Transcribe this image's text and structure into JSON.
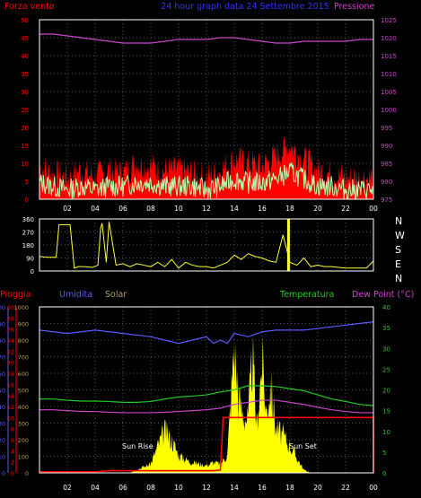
{
  "header": {
    "left_title": "Forza vento",
    "center_title": "24 hour graph data   24 Settembre 2015",
    "right_title": "Pressione"
  },
  "panel2": {
    "compass": [
      "N",
      "W",
      "S",
      "E",
      "N"
    ]
  },
  "panel3": {
    "labels": {
      "pioggia": "Pioggia",
      "umidita": "Umidita",
      "solar": "Solar",
      "temperatura": "Temperatura",
      "dewpoint": "Dew Point (°C)"
    },
    "annotations": {
      "sunrise": "Sun Rise",
      "sunset": "Sun Set"
    }
  },
  "x_ticks": [
    "02",
    "04",
    "06",
    "08",
    "10",
    "12",
    "14",
    "16",
    "18",
    "20",
    "22",
    "00"
  ],
  "colors": {
    "wind_gust": "#ff0000",
    "wind_avg": "#b0ffb0",
    "pressure": "#cc44cc",
    "wind_dir": "#ffff33",
    "rain": "#ff0000",
    "humidity": "#5a5aff",
    "solar": "#ffff00",
    "temperature": "#22cc22",
    "dewpoint": "#cc44cc",
    "axis_red": "#ff0000",
    "axis_blue": "#5a5aff",
    "axis_green": "#22cc22",
    "axis_pressure": "#cc44cc",
    "solar_label": "#b0a060"
  },
  "chart_data": [
    {
      "type": "area",
      "title": "24 hour graph data   24 Settembre 2015",
      "x_hours": [
        0,
        24
      ],
      "axes": {
        "left": {
          "label": "Forza vento",
          "ticks": [
            0,
            5,
            10,
            15,
            20,
            25,
            30,
            35,
            40,
            45,
            50
          ],
          "ylim": [
            0,
            50
          ]
        },
        "right": {
          "label": "Pressione",
          "ticks": [
            975,
            980,
            985,
            990,
            995,
            1000,
            1005,
            1010,
            1015,
            1020,
            1025
          ],
          "ylim": [
            975,
            1025
          ]
        }
      },
      "series": [
        {
          "name": "Pressione",
          "x": [
            0,
            1,
            2,
            3,
            4,
            5,
            6,
            7,
            8,
            9,
            10,
            11,
            12,
            13,
            14,
            15,
            16,
            17,
            18,
            19,
            20,
            21,
            22,
            23,
            24
          ],
          "values": [
            1021,
            1021,
            1020.5,
            1020,
            1019.5,
            1019,
            1018.5,
            1018.5,
            1018.5,
            1019,
            1019.5,
            1019.5,
            1019.5,
            1020,
            1020,
            1019.5,
            1019,
            1018.5,
            1018.5,
            1019,
            1019,
            1019,
            1019,
            1019.5,
            1019.5
          ]
        },
        {
          "x": [
            0,
            1,
            2,
            3,
            4,
            5,
            6,
            7,
            8,
            9,
            10,
            11,
            12,
            13,
            14,
            15,
            16,
            17,
            18,
            19,
            20,
            21,
            22,
            23,
            24
          ],
          "values": [
            8,
            6,
            5,
            7,
            5,
            7,
            6,
            9,
            8,
            7,
            7,
            6,
            5,
            7,
            10,
            9,
            8,
            11,
            14,
            10,
            7,
            6,
            5,
            5,
            5
          ]
        },
        {
          "x": [
            0,
            1,
            2,
            3,
            4,
            5,
            6,
            7,
            8,
            9,
            10,
            11,
            12,
            13,
            14,
            15,
            16,
            17,
            18,
            19,
            20,
            21,
            22,
            23,
            24
          ],
          "values": [
            4,
            3,
            2,
            3,
            2,
            3,
            3,
            4,
            4,
            3,
            3,
            3,
            2,
            3,
            5,
            4,
            4,
            5,
            7,
            5,
            3,
            3,
            2,
            2,
            2
          ]
        }
      ]
    },
    {
      "type": "line",
      "axes": {
        "left": {
          "ticks": [
            0,
            90,
            180,
            270,
            360
          ],
          "ylim": [
            0,
            360
          ]
        },
        "right": {
          "ticks": [
            "N",
            "W",
            "S",
            "E",
            "N"
          ]
        }
      },
      "series": [
        {
          "x": [
            0,
            0.6,
            1.2,
            1.4,
            2.2,
            2.5,
            2.8,
            3.2,
            3.8,
            4.2,
            4.4,
            4.5,
            4.8,
            5,
            5.5,
            6,
            6.5,
            7,
            7.5,
            8,
            8.5,
            9,
            9.5,
            10,
            10.5,
            11,
            11.5,
            12,
            12.5,
            13,
            13.5,
            14,
            14.5,
            15,
            15.5,
            16,
            16.5,
            17,
            17.5,
            18,
            18.5,
            19,
            19.5,
            20,
            20.5,
            21,
            21.5,
            22,
            22.5,
            23,
            23.5,
            24
          ],
          "values": [
            100,
            95,
            95,
            320,
            320,
            20,
            30,
            30,
            25,
            40,
            300,
            330,
            60,
            340,
            40,
            50,
            30,
            50,
            40,
            30,
            60,
            30,
            80,
            20,
            60,
            40,
            30,
            30,
            20,
            40,
            60,
            110,
            80,
            120,
            100,
            90,
            70,
            60,
            250,
            60,
            40,
            90,
            30,
            40,
            30,
            30,
            25,
            20,
            20,
            20,
            20,
            70
          ]
        }
      ]
    },
    {
      "type": "line",
      "axes": {
        "pioggia": {
          "label": "Pioggia",
          "ticks": [
            0,
            2,
            4,
            6,
            8,
            10,
            12,
            14,
            16,
            18,
            20,
            22,
            24,
            26,
            28,
            30
          ],
          "ylim": [
            0,
            30
          ]
        },
        "umidita": {
          "label": "Umidita",
          "ticks": [
            0,
            10,
            20,
            30,
            40,
            50,
            60,
            70,
            80,
            90,
            100
          ],
          "ylim": [
            0,
            100
          ]
        },
        "solar": {
          "label": "Solar",
          "ticks": [
            0,
            100,
            200,
            300,
            400,
            500,
            600,
            700,
            800,
            900,
            1000
          ],
          "ylim": [
            0,
            1000
          ]
        },
        "temperatura": {
          "label": "Temperatura",
          "ticks": [
            0,
            5,
            10,
            15,
            20,
            25,
            30,
            35,
            40
          ],
          "ylim": [
            0,
            40
          ]
        }
      },
      "annotations": [
        "Sun Rise",
        "Sun Set"
      ],
      "series": [
        {
          "name": "Umidita",
          "x": [
            0,
            1,
            2,
            3,
            4,
            5,
            6,
            7,
            8,
            9,
            10,
            11,
            12,
            12.5,
            13,
            13.5,
            14,
            15,
            16,
            17,
            18,
            19,
            20,
            21,
            22,
            23,
            24
          ],
          "values": [
            86,
            85,
            84,
            85,
            86,
            85,
            84,
            83,
            82,
            80,
            78,
            80,
            82,
            78,
            80,
            78,
            84,
            82,
            85,
            86,
            86,
            86,
            87,
            88,
            89,
            90,
            91
          ]
        },
        {
          "name": "Temperatura",
          "x": [
            0,
            1,
            2,
            3,
            4,
            5,
            6,
            7,
            8,
            9,
            10,
            11,
            12,
            13,
            14,
            15,
            16,
            17,
            18,
            19,
            20,
            21,
            22,
            23,
            24
          ],
          "values": [
            17.8,
            17.8,
            17.5,
            17.3,
            17.3,
            17.2,
            17.0,
            17.0,
            17.2,
            17.8,
            18.3,
            18.5,
            18.8,
            19.5,
            20.0,
            21.0,
            21.0,
            20.8,
            20.3,
            19.8,
            18.8,
            17.8,
            17.2,
            16.5,
            16.2
          ]
        },
        {
          "name": "Dew Point (°C)",
          "x": [
            0,
            1,
            2,
            3,
            4,
            5,
            6,
            7,
            8,
            9,
            10,
            11,
            12,
            13,
            14,
            15,
            16,
            17,
            18,
            19,
            20,
            21,
            22,
            23,
            24
          ],
          "values": [
            15.2,
            15.2,
            15.0,
            14.8,
            14.8,
            14.6,
            14.5,
            14.5,
            14.5,
            14.6,
            14.8,
            15.0,
            15.2,
            15.6,
            16.5,
            17.0,
            17.5,
            17.5,
            17.0,
            16.5,
            15.8,
            15.2,
            14.8,
            14.5,
            14.5
          ]
        },
        {
          "name": "Solar",
          "x": [
            0,
            5,
            6.5,
            8,
            8.5,
            9,
            9.5,
            10,
            10.5,
            11,
            11.5,
            12,
            12.5,
            13,
            13.5,
            14,
            14.3,
            14.6,
            15,
            15.3,
            15.6,
            16,
            16.3,
            16.6,
            17,
            17.5,
            18,
            18.5,
            19,
            19.5,
            24
          ],
          "values": [
            0,
            0,
            2,
            60,
            180,
            280,
            220,
            120,
            90,
            70,
            60,
            50,
            70,
            60,
            120,
            850,
            500,
            400,
            350,
            800,
            300,
            750,
            400,
            600,
            300,
            250,
            180,
            100,
            20,
            0,
            0
          ]
        },
        {
          "name": "Pioggia",
          "x": [
            0,
            4,
            5,
            8,
            12,
            12.5,
            13,
            13.2,
            24
          ],
          "values": [
            0.2,
            0.2,
            0.4,
            0.4,
            0.4,
            0.4,
            0.5,
            10,
            10
          ]
        }
      ]
    }
  ]
}
